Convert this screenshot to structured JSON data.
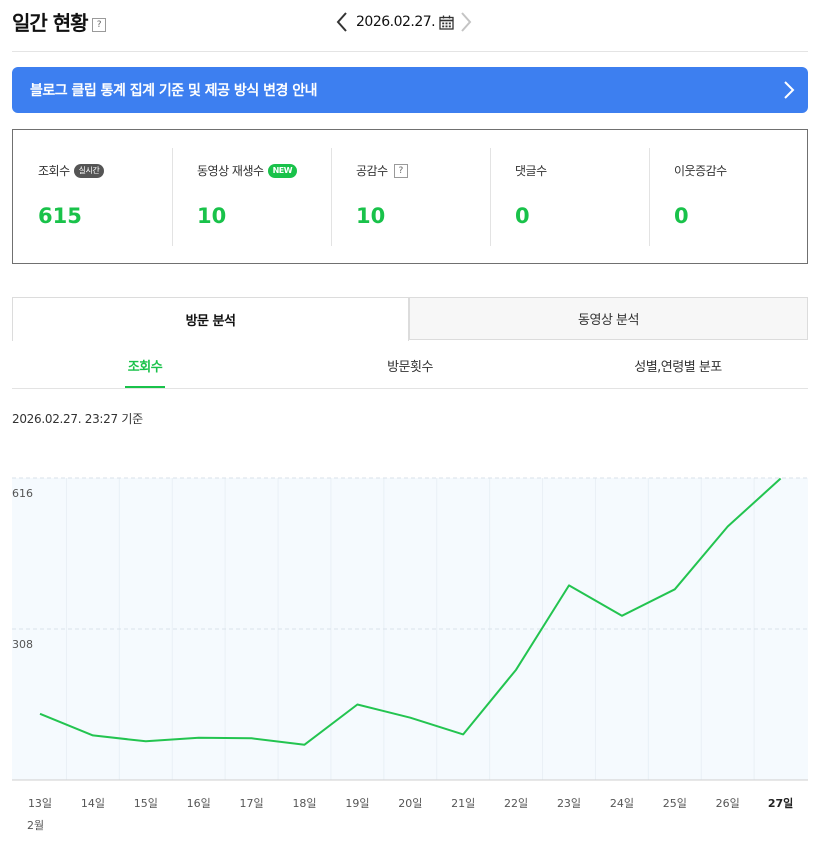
{
  "header": {
    "title": "일간 현황",
    "help": "?",
    "date": "2026.02.27."
  },
  "banner": {
    "text": "블로그 클립 통계 집계 기준 및 제공 방식 변경 안내"
  },
  "stats": {
    "views": {
      "label": "조회수",
      "badge": "실시간",
      "value": "615"
    },
    "video_plays": {
      "label": "동영상 재생수",
      "badge": "NEW",
      "value": "10"
    },
    "likes": {
      "label": "공감수",
      "help": "?",
      "value": "10"
    },
    "comments": {
      "label": "댓글수",
      "value": "0"
    },
    "neighbors": {
      "label": "이웃증감수",
      "value": "0"
    }
  },
  "tabs": {
    "visit": "방문 분석",
    "video": "동영상 분석"
  },
  "subtabs": {
    "views": "조회수",
    "visits": "방문횟수",
    "demographics": "성별,연령별 분포"
  },
  "as_of": "2026.02.27. 23:27 기준",
  "colors": {
    "accent_green": "#19c24a",
    "banner_blue": "#3d7ff0",
    "chart_bg": "#f5fafe"
  },
  "chart_data": {
    "type": "line",
    "x": [
      "13일",
      "14일",
      "15일",
      "16일",
      "17일",
      "18일",
      "19일",
      "20일",
      "21일",
      "22일",
      "23일",
      "24일",
      "25일",
      "26일",
      "27일"
    ],
    "month_label": "2월",
    "series": [
      {
        "values": [
          135,
          91,
          79,
          86,
          85,
          72,
          154,
          127,
          93,
          225,
          397,
          335,
          389,
          517,
          615
        ]
      }
    ],
    "ytick_labels": [
      "308",
      "616"
    ],
    "ylim": [
      0,
      616
    ],
    "grid": true
  }
}
